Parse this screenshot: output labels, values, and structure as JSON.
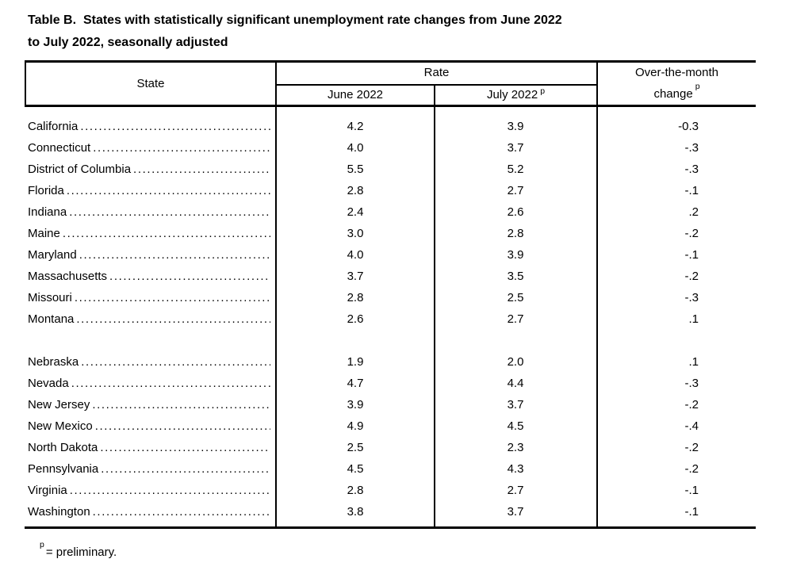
{
  "title": {
    "line1": "Table B.  States with statistically significant unemployment rate changes from June 2022",
    "line2": "to July 2022, seasonally adjusted"
  },
  "table": {
    "headers": {
      "state": "State",
      "rate": "Rate",
      "june": "June 2022",
      "july": "July 2022",
      "change_line1": "Over-the-month",
      "change_line2": "change",
      "preliminary_marker": "p"
    },
    "groups": [
      {
        "rows": [
          {
            "state": "California",
            "june": "4.2",
            "july": "3.9",
            "change": "-0.3"
          },
          {
            "state": "Connecticut",
            "june": "4.0",
            "july": "3.7",
            "change": "-.3"
          },
          {
            "state": "District of Columbia",
            "june": "5.5",
            "july": "5.2",
            "change": "-.3"
          },
          {
            "state": "Florida",
            "june": "2.8",
            "july": "2.7",
            "change": "-.1"
          },
          {
            "state": "Indiana",
            "june": "2.4",
            "july": "2.6",
            "change": ".2"
          },
          {
            "state": "Maine",
            "june": "3.0",
            "july": "2.8",
            "change": "-.2"
          },
          {
            "state": "Maryland",
            "june": "4.0",
            "july": "3.9",
            "change": "-.1"
          },
          {
            "state": "Massachusetts",
            "june": "3.7",
            "july": "3.5",
            "change": "-.2"
          },
          {
            "state": "Missouri",
            "june": "2.8",
            "july": "2.5",
            "change": "-.3"
          },
          {
            "state": "Montana",
            "june": "2.6",
            "july": "2.7",
            "change": ".1"
          }
        ]
      },
      {
        "rows": [
          {
            "state": "Nebraska",
            "june": "1.9",
            "july": "2.0",
            "change": ".1"
          },
          {
            "state": "Nevada",
            "june": "4.7",
            "july": "4.4",
            "change": "-.3"
          },
          {
            "state": "New Jersey",
            "june": "3.9",
            "july": "3.7",
            "change": "-.2"
          },
          {
            "state": "New Mexico",
            "june": "4.9",
            "july": "4.5",
            "change": "-.4"
          },
          {
            "state": "North Dakota",
            "june": "2.5",
            "july": "2.3",
            "change": "-.2"
          },
          {
            "state": "Pennsylvania",
            "june": "4.5",
            "july": "4.3",
            "change": "-.2"
          },
          {
            "state": "Virginia",
            "june": "2.8",
            "july": "2.7",
            "change": "-.1"
          },
          {
            "state": "Washington",
            "june": "3.8",
            "july": "3.7",
            "change": "-.1"
          }
        ]
      }
    ]
  },
  "footnote": {
    "marker": "p",
    "text": "= preliminary."
  },
  "colors": {
    "background": "#ffffff",
    "text": "#000000",
    "border": "#000000"
  }
}
